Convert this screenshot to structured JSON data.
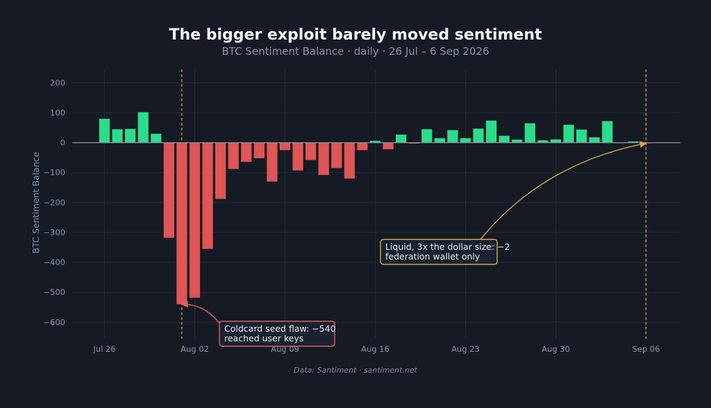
{
  "colors": {
    "positive": "#2bdc8b",
    "negative": "#e05555",
    "annotation_gold": "#d4a94c",
    "annotation_red": "#e06060",
    "grid": "#232a38"
  },
  "chart_data": {
    "type": "bar",
    "title": "The bigger exploit barely moved sentiment",
    "subtitle": "BTC Sentiment Balance · daily · 26 Jul – 6 Sep 2026",
    "ylabel": "BTC Sentiment Balance",
    "xlabel": "",
    "source": "Data: Santiment · santiment.net",
    "ylim": [
      -655,
      245
    ],
    "yticks": [
      200,
      100,
      0,
      -100,
      -200,
      -300,
      -400,
      -500,
      -600
    ],
    "ytick_labels": [
      "200",
      "100",
      "0",
      "−100",
      "−200",
      "−300",
      "−400",
      "−500",
      "−600"
    ],
    "grid": true,
    "x_start": "2026-07-26",
    "dates": [
      "2026-07-26",
      "2026-07-27",
      "2026-07-28",
      "2026-07-29",
      "2026-07-30",
      "2026-07-31",
      "2026-08-01",
      "2026-08-02",
      "2026-08-03",
      "2026-08-04",
      "2026-08-05",
      "2026-08-06",
      "2026-08-07",
      "2026-08-08",
      "2026-08-09",
      "2026-08-10",
      "2026-08-11",
      "2026-08-12",
      "2026-08-13",
      "2026-08-14",
      "2026-08-15",
      "2026-08-16",
      "2026-08-17",
      "2026-08-18",
      "2026-08-19",
      "2026-08-20",
      "2026-08-21",
      "2026-08-22",
      "2026-08-23",
      "2026-08-24",
      "2026-08-25",
      "2026-08-26",
      "2026-08-27",
      "2026-08-28",
      "2026-08-29",
      "2026-08-30",
      "2026-08-31",
      "2026-09-01",
      "2026-09-02",
      "2026-09-03",
      "2026-09-04",
      "2026-09-05",
      "2026-09-06"
    ],
    "values": [
      80,
      45,
      46,
      102,
      30,
      -318,
      -540,
      -518,
      -355,
      -188,
      -88,
      -64,
      -52,
      -130,
      -25,
      -93,
      -58,
      -108,
      -85,
      -120,
      -25,
      6,
      -22,
      27,
      -3,
      45,
      15,
      42,
      15,
      47,
      74,
      23,
      10,
      65,
      8,
      11,
      60,
      44,
      18,
      72,
      0,
      4,
      -2
    ],
    "x_ticks": [
      {
        "date": "2026-07-26",
        "label": "Jul 26"
      },
      {
        "date": "2026-08-02",
        "label": "Aug 02"
      },
      {
        "date": "2026-08-09",
        "label": "Aug 09"
      },
      {
        "date": "2026-08-16",
        "label": "Aug 16"
      },
      {
        "date": "2026-08-23",
        "label": "Aug 23"
      },
      {
        "date": "2026-08-30",
        "label": "Aug 30"
      },
      {
        "date": "2026-09-06",
        "label": "Sep 06"
      }
    ],
    "event_lines": [
      "2026-08-01",
      "2026-09-06"
    ],
    "annotations": [
      {
        "name": "coldcard",
        "lines": [
          "Coldcard seed flaw: −540",
          "reached user keys"
        ],
        "target_date": "2026-08-01",
        "target_value": -540,
        "color": "#e06060"
      },
      {
        "name": "liquid",
        "lines": [
          "Liquid, 3x the dollar size: −2",
          "federation wallet only"
        ],
        "target_date": "2026-09-06",
        "target_value": -2,
        "color": "#d4a94c"
      }
    ]
  }
}
